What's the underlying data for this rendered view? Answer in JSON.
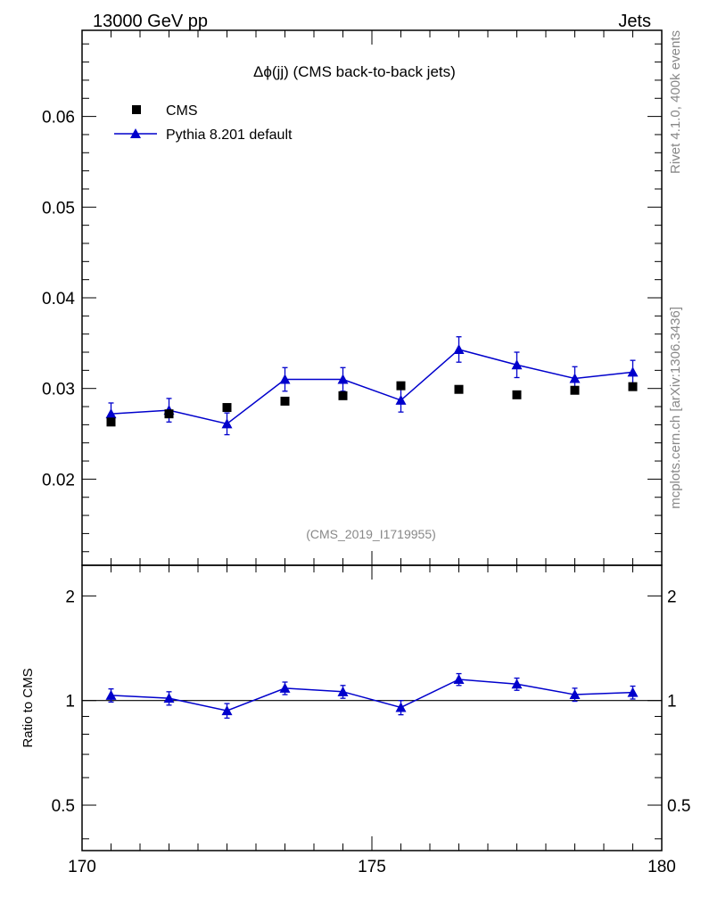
{
  "header": {
    "left": "13000 GeV pp",
    "right": "Jets"
  },
  "side_labels": {
    "rivet": "Rivet 4.1.0,  400k events",
    "mcplots": "mcplots.cern.ch [arXiv:1306.3436]"
  },
  "colors": {
    "mc": "#0000cc",
    "data": "#000000",
    "watermark": "#888888"
  },
  "chart_data": {
    "type": "scatter",
    "title": "Δϕ(jj) (CMS back-to-back jets)",
    "title_main": "(CMS back-to-back jets)",
    "watermark": "(CMS_2019_I1719955)",
    "xlim": [
      170,
      180
    ],
    "x_ticks": [
      170,
      175,
      180
    ],
    "x_tick_labels": [
      "170",
      "175",
      "180"
    ],
    "legend": [
      {
        "name": "CMS",
        "marker": "square"
      },
      {
        "name": "Pythia 8.201 default",
        "marker": "triangle"
      }
    ],
    "main": {
      "ylim": [
        0.0105,
        0.0695
      ],
      "y_ticks": [
        0.02,
        0.03,
        0.04,
        0.05,
        0.06
      ],
      "y_tick_labels": [
        "0.02",
        "0.03",
        "0.04",
        "0.05",
        "0.06"
      ],
      "x": [
        170.5,
        171.5,
        172.5,
        173.5,
        174.5,
        175.5,
        176.5,
        177.5,
        178.5,
        179.5
      ],
      "series": [
        {
          "name": "CMS",
          "values": [
            0.0263,
            0.0272,
            0.0279,
            0.0286,
            0.0292,
            0.0303,
            0.0299,
            0.0293,
            0.0298,
            0.0302
          ]
        },
        {
          "name": "Pythia 8.201 default",
          "values": [
            0.0272,
            0.0276,
            0.0261,
            0.031,
            0.031,
            0.0287,
            0.0343,
            0.0326,
            0.0311,
            0.0318
          ],
          "errors": [
            0.0012,
            0.0013,
            0.0012,
            0.0013,
            0.0013,
            0.0013,
            0.0014,
            0.0014,
            0.0013,
            0.0013
          ]
        }
      ]
    },
    "ratio": {
      "ylabel": "Ratio to CMS",
      "ylim": [
        0.37,
        2.45
      ],
      "y_ticks": [
        0.5,
        1,
        2
      ],
      "y_tick_labels": [
        "0.5",
        "1",
        "2"
      ],
      "reference": 1,
      "values": [
        1.035,
        1.015,
        0.935,
        1.085,
        1.06,
        0.955,
        1.15,
        1.115,
        1.04,
        1.055
      ],
      "errors": [
        0.045,
        0.045,
        0.045,
        0.045,
        0.045,
        0.045,
        0.045,
        0.045,
        0.045,
        0.045
      ]
    }
  }
}
